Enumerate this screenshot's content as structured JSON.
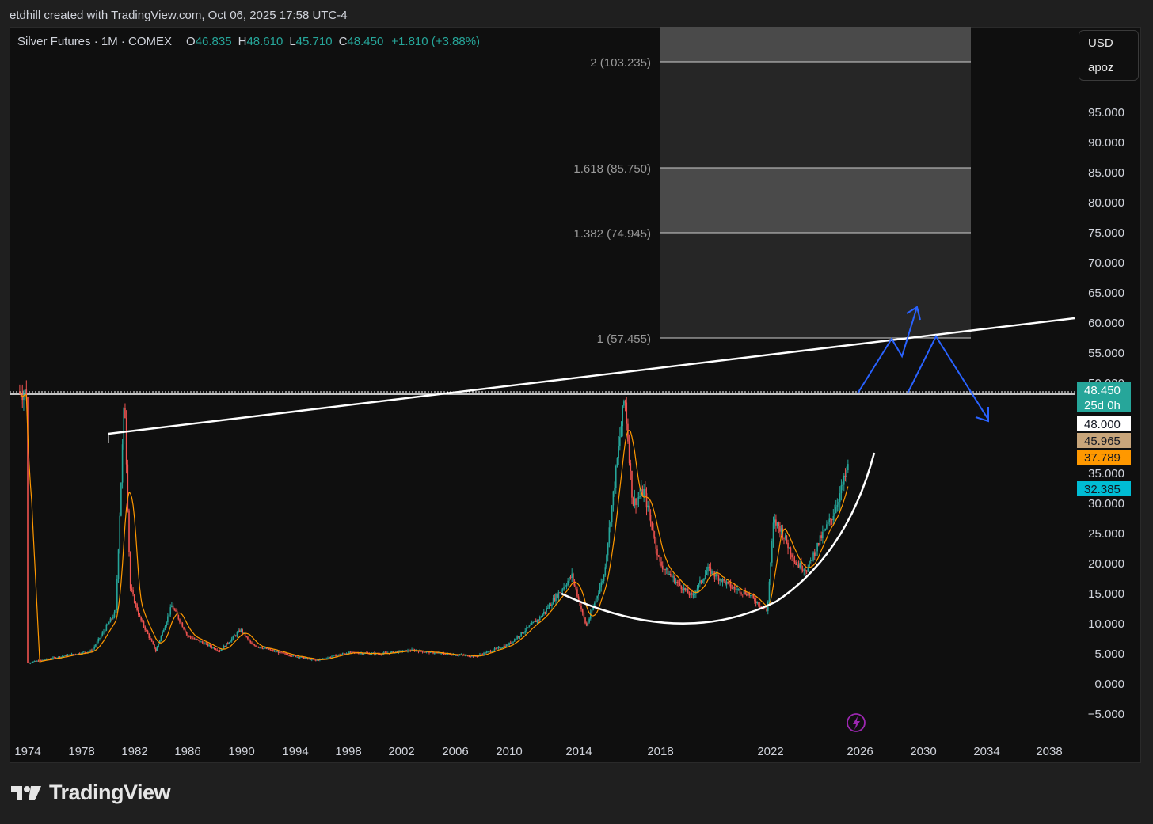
{
  "header": {
    "attribution": "etdhill created with TradingView.com, Oct 06, 2025 17:58 UTC-4"
  },
  "legend": {
    "symbol": "Silver Futures · 1M · COMEX",
    "open_label": "O",
    "open": "46.835",
    "high_label": "H",
    "high": "48.610",
    "low_label": "L",
    "low": "45.710",
    "close_label": "C",
    "close": "48.450",
    "change": "+1.810 (+3.88%)"
  },
  "currency_menu": {
    "currency": "USD",
    "unit": "apoz"
  },
  "price_axis": {
    "ticks": [
      "95.000",
      "90.000",
      "85.000",
      "80.000",
      "75.000",
      "70.000",
      "65.000",
      "60.000",
      "55.000",
      "50.000",
      "35.000",
      "30.000",
      "25.000",
      "20.000",
      "15.000",
      "10.000",
      "5.000",
      "0.000",
      "−5.000"
    ]
  },
  "price_badges": [
    {
      "label": "48.450",
      "sub": "25d 0h",
      "color": "#26a69a",
      "text_color": "#ffffff"
    },
    {
      "label": "48.000",
      "color": "#ffffff",
      "text_color": "#131722"
    },
    {
      "label": "45.965",
      "color": "#c8a57a",
      "text_color": "#131722"
    },
    {
      "label": "37.789",
      "color": "#ff9800",
      "text_color": "#131722"
    },
    {
      "label": "32.385",
      "color": "#00bcd4",
      "text_color": "#131722"
    }
  ],
  "time_axis": {
    "ticks": [
      "1974",
      "1978",
      "1982",
      "1986",
      "1990",
      "1994",
      "1998",
      "2002",
      "2006",
      "2010",
      "2014",
      "2018",
      "2022",
      "2026",
      "2030",
      "2034",
      "2038"
    ]
  },
  "fib_levels": [
    {
      "ratio": 2,
      "price": 103.235,
      "label": "2 (103.235)"
    },
    {
      "ratio": 1.618,
      "price": 85.75,
      "label": "1.618 (85.750)"
    },
    {
      "ratio": 1.382,
      "price": 74.945,
      "label": "1.382 (74.945)"
    },
    {
      "ratio": 1,
      "price": 57.455,
      "label": "1 (57.455)"
    }
  ],
  "colors": {
    "background": "#0f0f0f",
    "up": "#26a69a",
    "down": "#ef5350",
    "ma": "#ff9800",
    "projection": "#2962ff",
    "drawing": "#ffffff"
  },
  "icons": {
    "alert": "lightning-icon",
    "logo": "tradingview-logo-icon"
  },
  "brand": {
    "name": "TradingView"
  }
}
